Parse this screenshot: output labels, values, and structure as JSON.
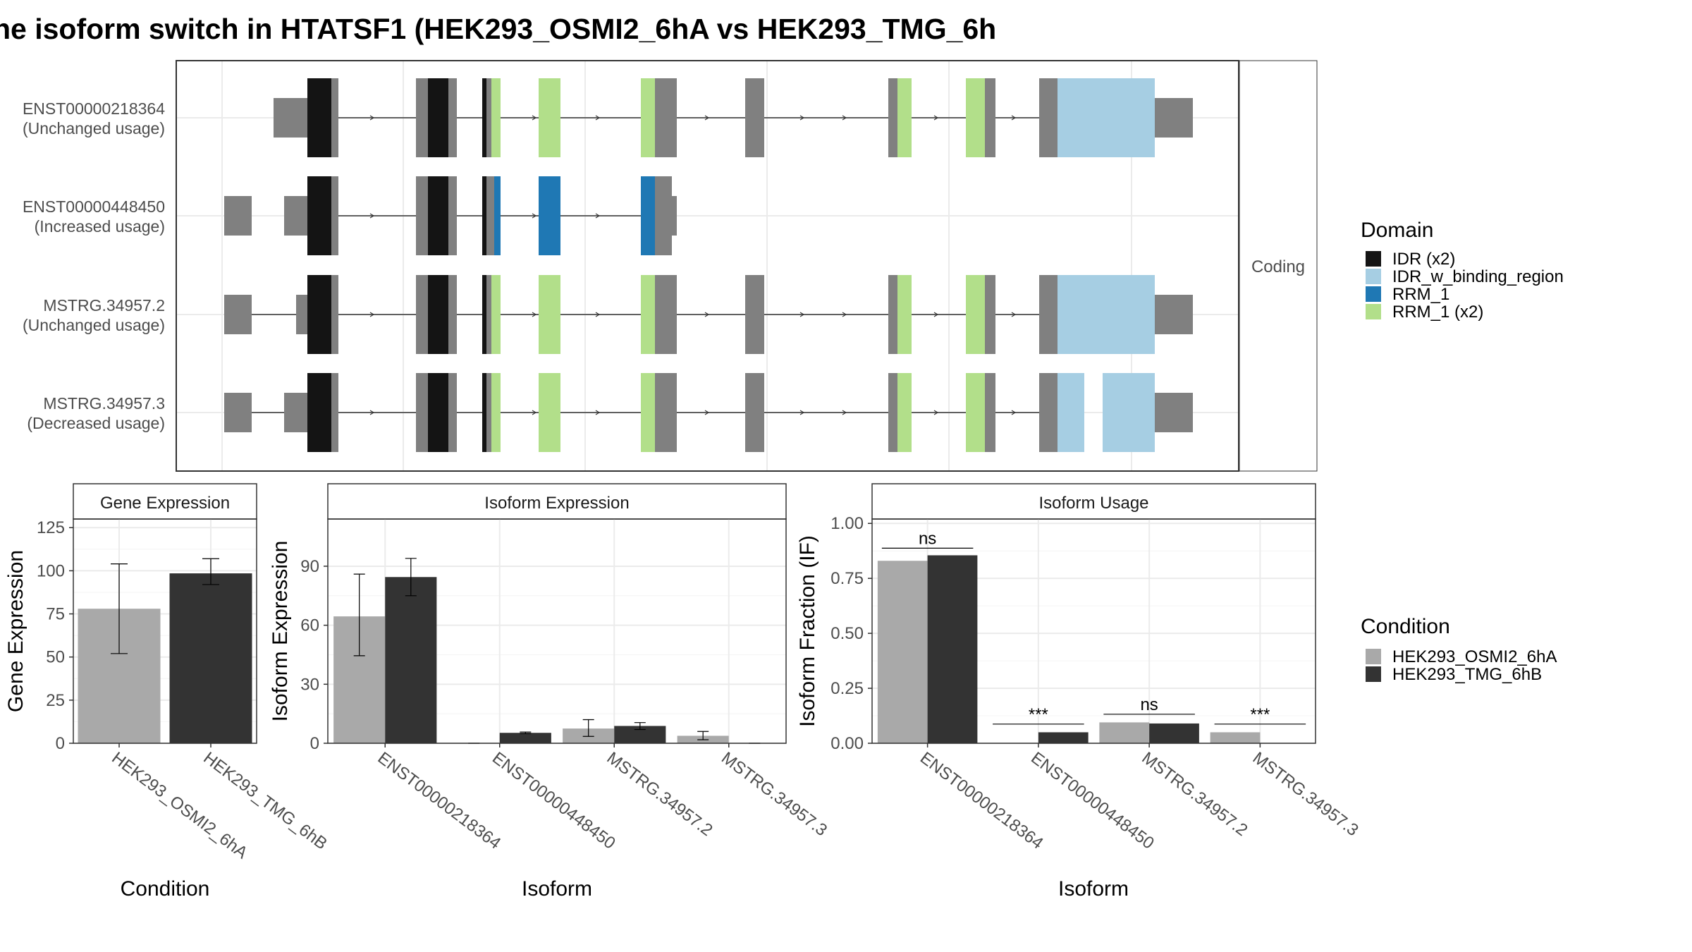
{
  "title": "ne isoform switch in HTATSF1 (HEK293_OSMI2_6hA vs HEK293_TMG_6h",
  "colors": {
    "idr": "#141414",
    "idr_w_binding_region": "#a6cee3",
    "rrm_1": "#1f78b4",
    "rrm_1_x2": "#b2df8a",
    "exon": "#808080",
    "cond_a": "#a9a9a9",
    "cond_b": "#333333"
  },
  "structure_panel": {
    "strip_label": "Coding",
    "transcripts": [
      {
        "id": "ENST00000218364",
        "status": "(Unchanged usage)"
      },
      {
        "id": "ENST00000448450",
        "status": "(Increased usage)"
      },
      {
        "id": "MSTRG.34957.2",
        "status": "(Unchanged usage)"
      },
      {
        "id": "MSTRG.34957.3",
        "status": "(Decreased usage)"
      }
    ]
  },
  "legend_domain": {
    "title": "Domain",
    "items": [
      {
        "label": "IDR (x2)",
        "color": "#141414"
      },
      {
        "label": "IDR_w_binding_region",
        "color": "#a6cee3"
      },
      {
        "label": "RRM_1",
        "color": "#1f78b4"
      },
      {
        "label": "RRM_1 (x2)",
        "color": "#b2df8a"
      }
    ]
  },
  "legend_condition": {
    "title": "Condition",
    "items": [
      {
        "label": "HEK293_OSMI2_6hA",
        "color": "#a9a9a9"
      },
      {
        "label": "HEK293_TMG_6hB",
        "color": "#333333"
      }
    ]
  },
  "chart_data": [
    {
      "type": "bar",
      "title": "Gene Expression",
      "xlabel": "Condition",
      "ylabel": "Gene Expression",
      "ylim": [
        0,
        130
      ],
      "yticks": [
        0,
        25,
        50,
        75,
        100,
        125
      ],
      "categories": [
        "HEK293_OSMI2_6hA",
        "HEK293_TMG_6hB"
      ],
      "values": [
        78,
        98.5
      ],
      "errors": [
        [
          52,
          104
        ],
        [
          92,
          107
        ]
      ],
      "grid": true
    },
    {
      "type": "bar",
      "title": "Isoform Expression",
      "xlabel": "Isoform",
      "ylabel": "Isoform Expression",
      "ylim": [
        0,
        114
      ],
      "yticks": [
        0,
        30,
        60,
        90
      ],
      "categories": [
        "ENST00000218364",
        "ENST00000448450",
        "MSTRG.34957.2",
        "MSTRG.34957.3"
      ],
      "series": [
        {
          "name": "HEK293_OSMI2_6hA",
          "values": [
            64.5,
            0,
            7.5,
            3.8
          ],
          "errors": [
            [
              44.5,
              86
            ],
            [
              0,
              0
            ],
            [
              3.5,
              12
            ],
            [
              1.8,
              6
            ]
          ]
        },
        {
          "name": "HEK293_TMG_6hB",
          "values": [
            84.5,
            5.3,
            8.8,
            0
          ],
          "errors": [
            [
              75,
              94
            ],
            [
              4.9,
              5.7
            ],
            [
              7,
              10.5
            ],
            [
              0,
              0
            ]
          ]
        }
      ],
      "grid": true
    },
    {
      "type": "bar",
      "title": "Isoform Usage",
      "xlabel": "Isoform",
      "ylabel": "Isoform Fraction (IF)",
      "ylim": [
        0,
        1.02
      ],
      "yticks": [
        "0.00",
        "0.25",
        "0.50",
        "0.75",
        "1.00"
      ],
      "categories": [
        "ENST00000218364",
        "ENST00000448450",
        "MSTRG.34957.2",
        "MSTRG.34957.3"
      ],
      "series": [
        {
          "name": "HEK293_OSMI2_6hA",
          "values": [
            0.83,
            0.0,
            0.095,
            0.05
          ]
        },
        {
          "name": "HEK293_TMG_6hB",
          "values": [
            0.855,
            0.05,
            0.09,
            0.0
          ]
        }
      ],
      "annotations": [
        {
          "label": "ns",
          "y": 0.9
        },
        {
          "label": "***",
          "y": 0.1
        },
        {
          "label": "ns",
          "y": 0.145
        },
        {
          "label": "***",
          "y": 0.1
        }
      ],
      "grid": true
    }
  ]
}
